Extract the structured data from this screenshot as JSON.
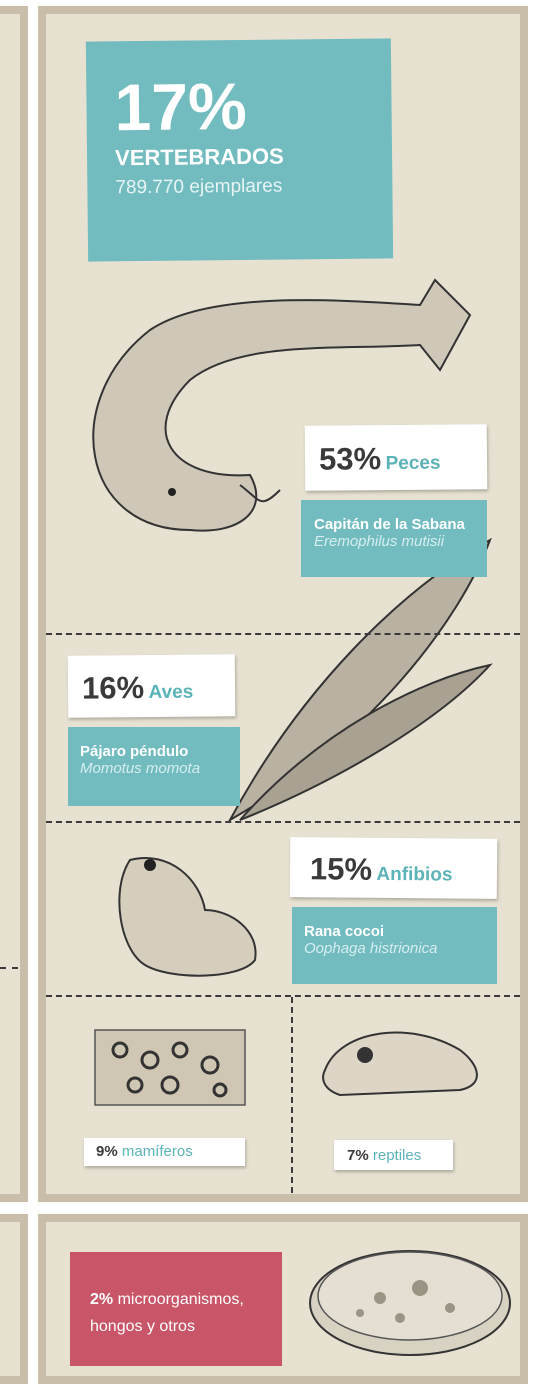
{
  "header": {
    "percent": "17%",
    "label": "VERTEBRADOS",
    "count": "789.770 ejemplares"
  },
  "groups": [
    {
      "percent": "53%",
      "name": "Peces",
      "common": "Capitán de la Sabana",
      "scientific": "Eremophilus mutisii"
    },
    {
      "percent": "16%",
      "name": "Aves",
      "common": "Pájaro péndulo",
      "scientific": "Momotus momota"
    },
    {
      "percent": "15%",
      "name": "Anfibios",
      "common": "Rana cocoi",
      "scientific": "Oophaga histrionica"
    }
  ],
  "minor": [
    {
      "percent": "9%",
      "name": "mamíferos"
    },
    {
      "percent": "7%",
      "name": "reptiles"
    }
  ],
  "other": {
    "percent": "2%",
    "text": "microorganismos, hongos y otros"
  }
}
